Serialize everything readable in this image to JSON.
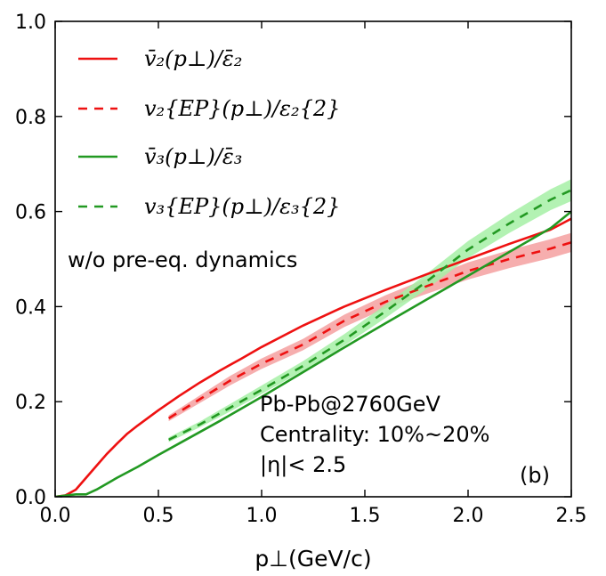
{
  "chart_data": {
    "type": "line",
    "xlim": [
      0.0,
      2.5
    ],
    "ylim": [
      0.0,
      1.0
    ],
    "xticks": [
      "0.0",
      "0.5",
      "1.0",
      "1.5",
      "2.0",
      "2.5"
    ],
    "yticks": [
      "0.0",
      "0.2",
      "0.4",
      "0.6",
      "0.8",
      "1.0"
    ],
    "xlabel": "p⊥(GeV/c)",
    "ylabel": "",
    "legend_position": "top-left",
    "annotations": {
      "condition": "w/o pre-eq. dynamics",
      "system": "Pb-Pb@2760GeV",
      "centrality": "Centrality: 10%~20%",
      "eta": "|η|< 2.5",
      "panel": "(b)"
    },
    "series": [
      {
        "name": "v̄₂(p⊥)/ε̄₂",
        "color": "#ee1111",
        "style": "solid",
        "x": [
          0.0,
          0.05,
          0.1,
          0.15,
          0.2,
          0.25,
          0.3,
          0.35,
          0.4,
          0.5,
          0.6,
          0.7,
          0.8,
          0.9,
          1.0,
          1.2,
          1.4,
          1.6,
          1.8,
          2.0,
          2.2,
          2.4,
          2.5
        ],
        "y": [
          0.0,
          0.003,
          0.015,
          0.04,
          0.065,
          0.09,
          0.112,
          0.133,
          0.15,
          0.182,
          0.212,
          0.24,
          0.266,
          0.29,
          0.315,
          0.36,
          0.4,
          0.435,
          0.468,
          0.5,
          0.532,
          0.562,
          0.585
        ]
      },
      {
        "name": "v₂{EP}(p⊥)/ε₂{2}",
        "color": "#ee1111",
        "style": "dashed",
        "band_color": "#f4a0a0",
        "x": [
          0.55,
          0.7,
          0.85,
          1.0,
          1.2,
          1.4,
          1.6,
          1.8,
          2.0,
          2.2,
          2.4,
          2.5
        ],
        "y": [
          0.165,
          0.205,
          0.245,
          0.28,
          0.32,
          0.37,
          0.41,
          0.443,
          0.475,
          0.5,
          0.522,
          0.535
        ],
        "band": [
          0.006,
          0.008,
          0.01,
          0.011,
          0.012,
          0.013,
          0.014,
          0.016,
          0.018,
          0.019,
          0.02,
          0.02
        ]
      },
      {
        "name": "v̄₃(p⊥)/ε̄₃",
        "color": "#229922",
        "style": "solid",
        "x": [
          0.0,
          0.1,
          0.15,
          0.2,
          0.3,
          0.4,
          0.5,
          0.6,
          0.8,
          1.0,
          1.2,
          1.4,
          1.6,
          1.8,
          2.0,
          2.2,
          2.4,
          2.5
        ],
        "y": [
          0.0,
          0.005,
          0.005,
          0.015,
          0.04,
          0.063,
          0.088,
          0.112,
          0.16,
          0.21,
          0.262,
          0.314,
          0.365,
          0.415,
          0.465,
          0.515,
          0.565,
          0.6
        ]
      },
      {
        "name": "v₃{EP}(p⊥)/ε₃{2}",
        "color": "#229922",
        "style": "dashed",
        "band_color": "#a6f0a6",
        "x": [
          0.55,
          0.7,
          0.85,
          1.0,
          1.2,
          1.4,
          1.6,
          1.8,
          2.0,
          2.2,
          2.4,
          2.5
        ],
        "y": [
          0.12,
          0.152,
          0.188,
          0.225,
          0.275,
          0.33,
          0.39,
          0.453,
          0.52,
          0.575,
          0.625,
          0.645
        ],
        "band": [
          0.005,
          0.006,
          0.008,
          0.009,
          0.01,
          0.012,
          0.014,
          0.016,
          0.018,
          0.02,
          0.022,
          0.023
        ]
      }
    ]
  }
}
